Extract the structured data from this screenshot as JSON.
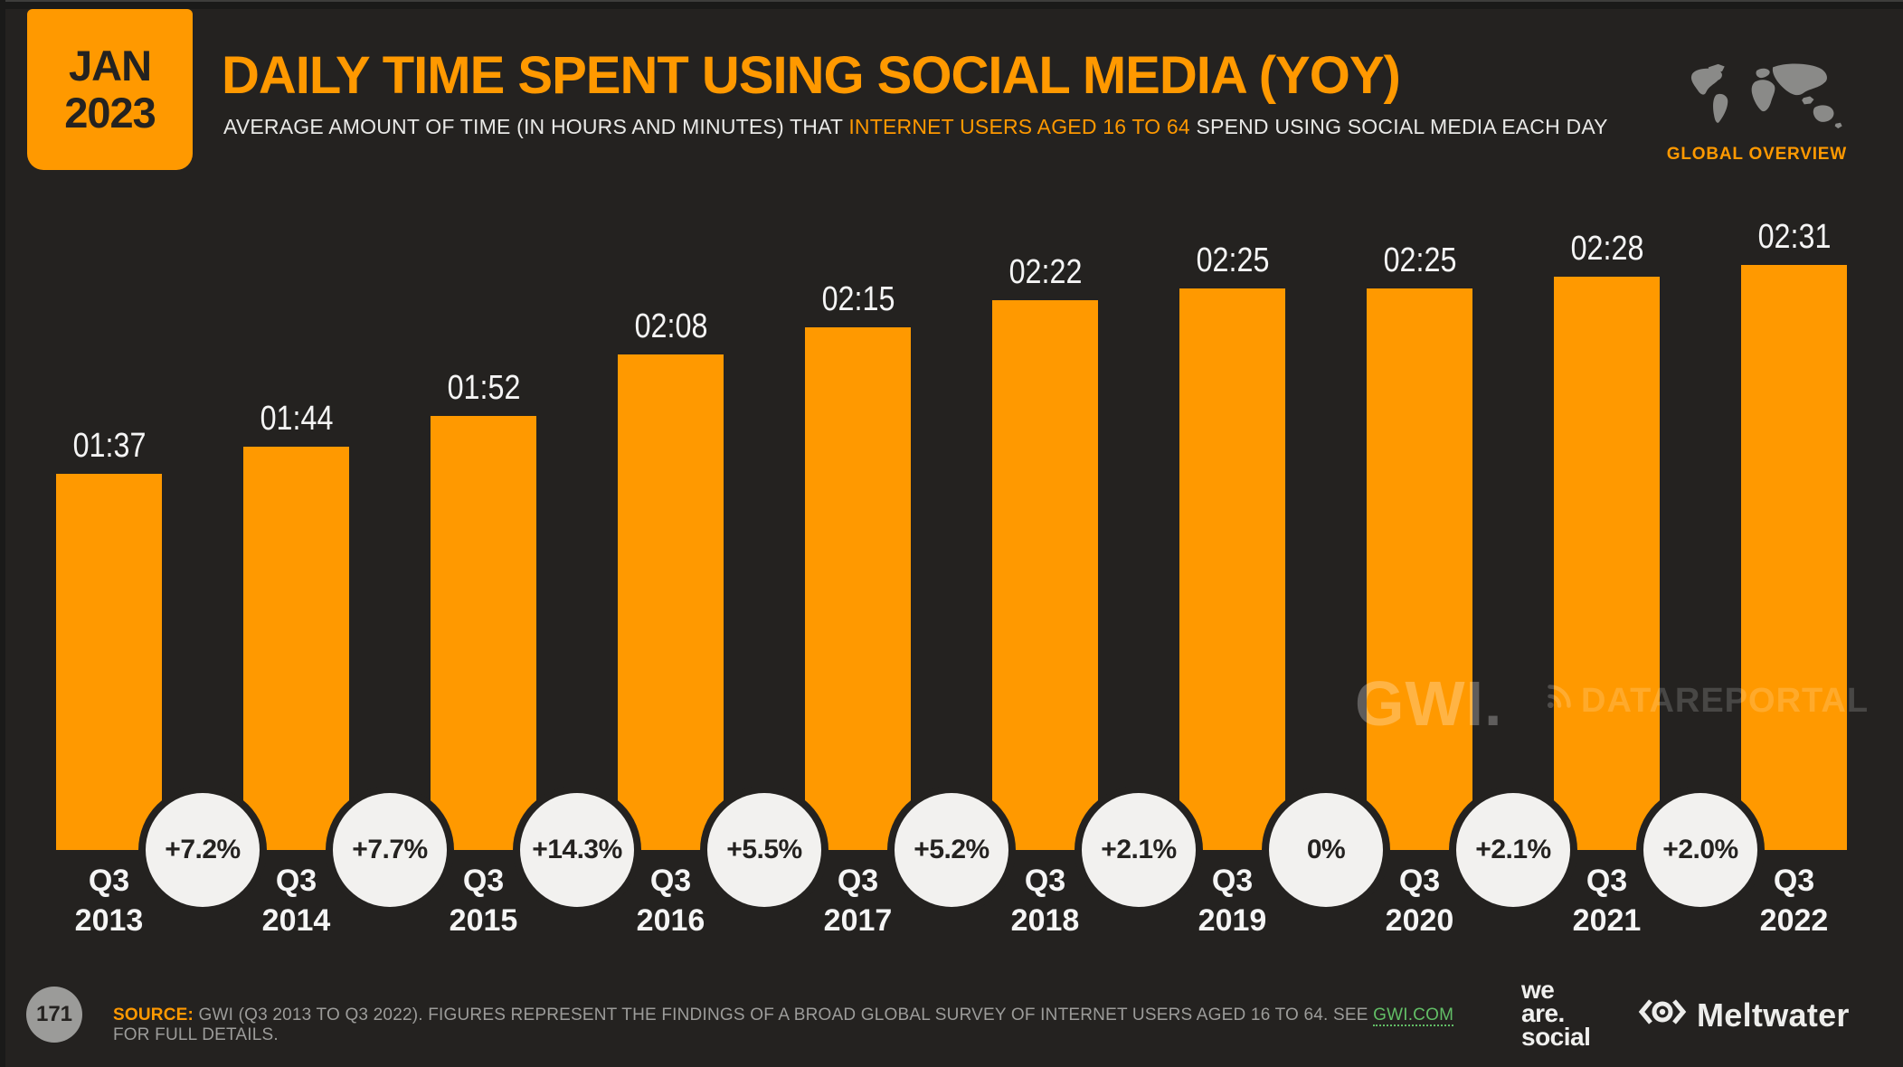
{
  "badge": {
    "month": "JAN",
    "year": "2023"
  },
  "header": {
    "title": "DAILY TIME SPENT USING SOCIAL MEDIA (YOY)",
    "subtitle_prefix": "AVERAGE AMOUNT OF TIME (IN HOURS AND MINUTES) THAT ",
    "subtitle_highlight": "INTERNET USERS AGED 16 TO 64",
    "subtitle_suffix": " SPEND USING SOCIAL MEDIA EACH DAY",
    "region_label": "GLOBAL OVERVIEW"
  },
  "chart_data": {
    "type": "bar",
    "title": "Daily time spent using social media (YoY)",
    "categories": [
      "Q3 2013",
      "Q3 2014",
      "Q3 2015",
      "Q3 2016",
      "Q3 2017",
      "Q3 2018",
      "Q3 2019",
      "Q3 2020",
      "Q3 2021",
      "Q3 2022"
    ],
    "values_hhmm": [
      "01:37",
      "01:44",
      "01:52",
      "02:08",
      "02:15",
      "02:22",
      "02:25",
      "02:25",
      "02:28",
      "02:31"
    ],
    "values_minutes": [
      97,
      104,
      112,
      128,
      135,
      142,
      145,
      145,
      148,
      151
    ],
    "yoy_change": [
      "+7.2%",
      "+7.7%",
      "+14.3%",
      "+5.5%",
      "+5.2%",
      "+2.1%",
      "0%",
      "+2.1%",
      "+2.0%"
    ],
    "ylim_minutes": [
      0,
      156
    ],
    "grid": false,
    "legend": false,
    "bar_color": "#FF9900",
    "value_label_color": "#F5F5F5",
    "category_label_color": "#F5F5F5",
    "bubble_fill": "#F2F1EF",
    "bubble_text_color": "#242220"
  },
  "watermarks": {
    "gwi": "GWI.",
    "datareportal": "DATAREPORTAL"
  },
  "footer": {
    "page_number": "171",
    "source_label": "SOURCE:",
    "source_text_before_link": " GWI (Q3 2013 TO Q3 2022). FIGURES REPRESENT THE FINDINGS OF A BROAD GLOBAL SURVEY OF INTERNET USERS AGED 16 TO 64. SEE ",
    "source_link": "GWI.COM",
    "source_text_after_link": " FOR FULL DETAILS.",
    "we_are_social_line1": "we",
    "we_are_social_line2": "are.",
    "we_are_social_line3": "social",
    "meltwater_label": "Meltwater"
  },
  "colors": {
    "accent_orange": "#FF9900",
    "background": "#242220",
    "frame": "#1A1A19",
    "muted_text": "#9C9C9A",
    "link_green": "#62BE66",
    "map_gray": "#8A8A88"
  }
}
